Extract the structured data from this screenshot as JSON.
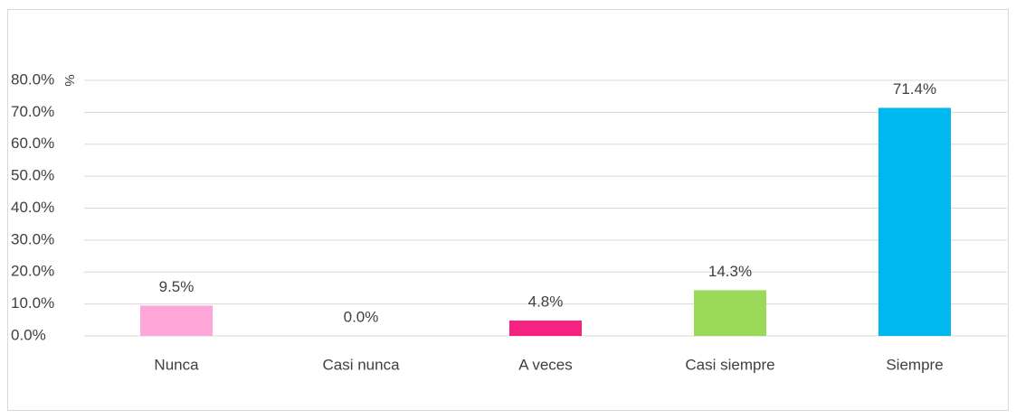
{
  "chart_data": {
    "type": "bar",
    "y_label": "%",
    "categories": [
      "Nunca",
      "Casi nunca",
      "A veces",
      "Casi siempre",
      "Siempre"
    ],
    "values": [
      9.5,
      0.0,
      4.8,
      14.3,
      71.4
    ],
    "value_labels": [
      "9.5%",
      "0.0%",
      "4.8%",
      "14.3%",
      "71.4%"
    ],
    "colors": [
      "#ffa6d9",
      "#f2f2f2",
      "#f7217f",
      "#9ad95a",
      "#00b8f0"
    ],
    "ylim": [
      0,
      80
    ],
    "yticks": [
      {
        "value": 0,
        "label": "0.0%"
      },
      {
        "value": 10,
        "label": "10.0%"
      },
      {
        "value": 20,
        "label": "20.0%"
      },
      {
        "value": 30,
        "label": "30.0%"
      },
      {
        "value": 40,
        "label": "40.0%"
      },
      {
        "value": 50,
        "label": "50.0%"
      },
      {
        "value": 60,
        "label": "60.0%"
      },
      {
        "value": 70,
        "label": "70.0%"
      },
      {
        "value": 80,
        "label": "80.0%"
      }
    ],
    "grid": true
  }
}
